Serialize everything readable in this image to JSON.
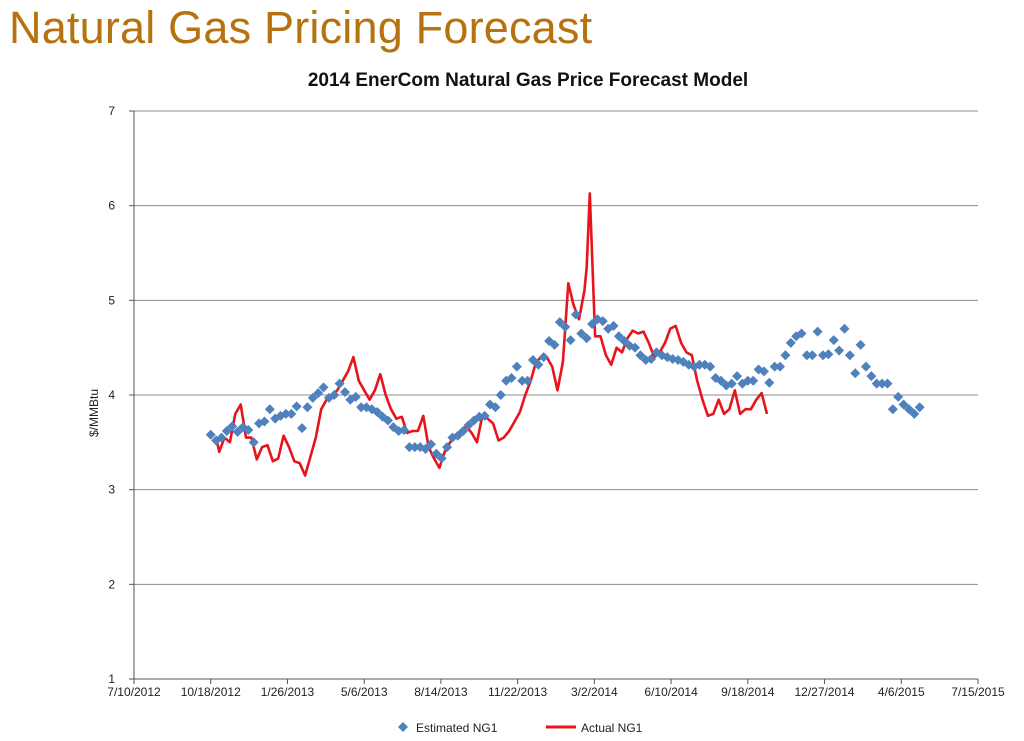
{
  "slide": {
    "title": "Natural Gas Pricing Forecast"
  },
  "colors": {
    "title": "#b5720f",
    "estimated": "#4f81bd",
    "actual": "#e8141c",
    "grid": "#8c8c8c"
  },
  "chart_data": {
    "type": "line",
    "title": "2014 EnerCom Natural Gas Price Forecast Model",
    "xlabel": "",
    "ylabel": "$/MMBtu",
    "ylim": [
      1,
      7
    ],
    "yticks": [
      1,
      2,
      3,
      4,
      5,
      6,
      7
    ],
    "xlim": [
      "2012-07-10",
      "2015-07-15"
    ],
    "xticks": [
      "7/10/2012",
      "10/18/2012",
      "1/26/2013",
      "5/6/2013",
      "8/14/2013",
      "11/22/2013",
      "3/2/2014",
      "6/10/2014",
      "9/18/2014",
      "12/27/2014",
      "4/6/2015",
      "7/15/2015"
    ],
    "grid": "horizontal",
    "legend_position": "bottom",
    "series": [
      {
        "name": "Estimated NG1",
        "style": "diamond-markers",
        "points": [
          [
            "2012-10-18",
            3.58
          ],
          [
            "2012-10-25",
            3.52
          ],
          [
            "2012-11-01",
            3.55
          ],
          [
            "2012-11-08",
            3.62
          ],
          [
            "2012-11-15",
            3.67
          ],
          [
            "2012-11-22",
            3.61
          ],
          [
            "2012-11-29",
            3.66
          ],
          [
            "2012-12-06",
            3.63
          ],
          [
            "2012-12-13",
            3.5
          ],
          [
            "2012-12-20",
            3.7
          ],
          [
            "2012-12-27",
            3.72
          ],
          [
            "2013-01-03",
            3.85
          ],
          [
            "2013-01-10",
            3.75
          ],
          [
            "2013-01-17",
            3.78
          ],
          [
            "2013-01-24",
            3.8
          ],
          [
            "2013-01-31",
            3.8
          ],
          [
            "2013-02-07",
            3.88
          ],
          [
            "2013-02-14",
            3.65
          ],
          [
            "2013-02-21",
            3.87
          ],
          [
            "2013-02-28",
            3.97
          ],
          [
            "2013-03-07",
            4.02
          ],
          [
            "2013-03-14",
            4.08
          ],
          [
            "2013-03-21",
            3.97
          ],
          [
            "2013-03-28",
            4.0
          ],
          [
            "2013-04-04",
            4.12
          ],
          [
            "2013-04-11",
            4.03
          ],
          [
            "2013-04-18",
            3.95
          ],
          [
            "2013-04-25",
            3.98
          ],
          [
            "2013-05-02",
            3.87
          ],
          [
            "2013-05-09",
            3.87
          ],
          [
            "2013-05-16",
            3.85
          ],
          [
            "2013-05-23",
            3.82
          ],
          [
            "2013-05-30",
            3.77
          ],
          [
            "2013-06-06",
            3.73
          ],
          [
            "2013-06-13",
            3.66
          ],
          [
            "2013-06-20",
            3.62
          ],
          [
            "2013-06-27",
            3.63
          ],
          [
            "2013-07-04",
            3.45
          ],
          [
            "2013-07-11",
            3.45
          ],
          [
            "2013-07-18",
            3.45
          ],
          [
            "2013-07-25",
            3.43
          ],
          [
            "2013-08-01",
            3.48
          ],
          [
            "2013-08-08",
            3.38
          ],
          [
            "2013-08-15",
            3.33
          ],
          [
            "2013-08-22",
            3.45
          ],
          [
            "2013-08-29",
            3.55
          ],
          [
            "2013-09-05",
            3.57
          ],
          [
            "2013-09-12",
            3.62
          ],
          [
            "2013-09-19",
            3.68
          ],
          [
            "2013-09-26",
            3.73
          ],
          [
            "2013-10-03",
            3.77
          ],
          [
            "2013-10-10",
            3.78
          ],
          [
            "2013-10-17",
            3.9
          ],
          [
            "2013-10-24",
            3.87
          ],
          [
            "2013-10-31",
            4.0
          ],
          [
            "2013-11-07",
            4.15
          ],
          [
            "2013-11-14",
            4.18
          ],
          [
            "2013-11-21",
            4.3
          ],
          [
            "2013-11-28",
            4.15
          ],
          [
            "2013-12-05",
            4.15
          ],
          [
            "2013-12-12",
            4.37
          ],
          [
            "2013-12-19",
            4.32
          ],
          [
            "2013-12-26",
            4.4
          ],
          [
            "2014-01-02",
            4.57
          ],
          [
            "2014-01-09",
            4.53
          ],
          [
            "2014-01-16",
            4.77
          ],
          [
            "2014-01-23",
            4.72
          ],
          [
            "2014-01-30",
            4.58
          ],
          [
            "2014-02-06",
            4.85
          ],
          [
            "2014-02-13",
            4.65
          ],
          [
            "2014-02-20",
            4.6
          ],
          [
            "2014-02-27",
            4.75
          ],
          [
            "2014-03-06",
            4.8
          ],
          [
            "2014-03-13",
            4.78
          ],
          [
            "2014-03-20",
            4.7
          ],
          [
            "2014-03-27",
            4.73
          ],
          [
            "2014-04-03",
            4.62
          ],
          [
            "2014-04-10",
            4.57
          ],
          [
            "2014-04-17",
            4.52
          ],
          [
            "2014-04-24",
            4.5
          ],
          [
            "2014-05-01",
            4.42
          ],
          [
            "2014-05-08",
            4.37
          ],
          [
            "2014-05-15",
            4.38
          ],
          [
            "2014-05-22",
            4.45
          ],
          [
            "2014-05-29",
            4.42
          ],
          [
            "2014-06-05",
            4.4
          ],
          [
            "2014-06-12",
            4.38
          ],
          [
            "2014-06-19",
            4.37
          ],
          [
            "2014-06-26",
            4.35
          ],
          [
            "2014-07-03",
            4.32
          ],
          [
            "2014-07-10",
            4.3
          ],
          [
            "2014-07-17",
            4.32
          ],
          [
            "2014-07-24",
            4.32
          ],
          [
            "2014-07-31",
            4.3
          ],
          [
            "2014-08-07",
            4.18
          ],
          [
            "2014-08-14",
            4.15
          ],
          [
            "2014-08-21",
            4.1
          ],
          [
            "2014-08-28",
            4.12
          ],
          [
            "2014-09-04",
            4.2
          ],
          [
            "2014-09-11",
            4.12
          ],
          [
            "2014-09-18",
            4.15
          ],
          [
            "2014-09-25",
            4.15
          ],
          [
            "2014-10-02",
            4.27
          ],
          [
            "2014-10-09",
            4.25
          ],
          [
            "2014-10-16",
            4.13
          ],
          [
            "2014-10-23",
            4.3
          ],
          [
            "2014-10-30",
            4.3
          ],
          [
            "2014-11-06",
            4.42
          ],
          [
            "2014-11-13",
            4.55
          ],
          [
            "2014-11-20",
            4.62
          ],
          [
            "2014-11-27",
            4.65
          ],
          [
            "2014-12-04",
            4.42
          ],
          [
            "2014-12-11",
            4.42
          ],
          [
            "2014-12-18",
            4.67
          ],
          [
            "2014-12-25",
            4.42
          ],
          [
            "2015-01-01",
            4.43
          ],
          [
            "2015-01-08",
            4.58
          ],
          [
            "2015-01-15",
            4.47
          ],
          [
            "2015-01-22",
            4.7
          ],
          [
            "2015-01-29",
            4.42
          ],
          [
            "2015-02-05",
            4.23
          ],
          [
            "2015-02-12",
            4.53
          ],
          [
            "2015-02-19",
            4.3
          ],
          [
            "2015-02-26",
            4.2
          ],
          [
            "2015-03-05",
            4.12
          ],
          [
            "2015-03-12",
            4.12
          ],
          [
            "2015-03-19",
            4.12
          ],
          [
            "2015-03-26",
            3.85
          ],
          [
            "2015-04-02",
            3.98
          ],
          [
            "2015-04-09",
            3.9
          ],
          [
            "2015-04-16",
            3.85
          ],
          [
            "2015-04-23",
            3.8
          ],
          [
            "2015-04-30",
            3.87
          ]
        ]
      },
      {
        "name": "Actual NG1",
        "style": "line",
        "points": [
          [
            "2012-10-25",
            3.55
          ],
          [
            "2012-10-29",
            3.4
          ],
          [
            "2012-11-05",
            3.55
          ],
          [
            "2012-11-12",
            3.5
          ],
          [
            "2012-11-19",
            3.8
          ],
          [
            "2012-11-26",
            3.9
          ],
          [
            "2012-12-03",
            3.55
          ],
          [
            "2012-12-10",
            3.55
          ],
          [
            "2012-12-17",
            3.32
          ],
          [
            "2012-12-24",
            3.45
          ],
          [
            "2012-12-31",
            3.47
          ],
          [
            "2013-01-07",
            3.3
          ],
          [
            "2013-01-14",
            3.33
          ],
          [
            "2013-01-21",
            3.57
          ],
          [
            "2013-01-28",
            3.45
          ],
          [
            "2013-02-04",
            3.3
          ],
          [
            "2013-02-11",
            3.28
          ],
          [
            "2013-02-18",
            3.15
          ],
          [
            "2013-02-25",
            3.35
          ],
          [
            "2013-03-04",
            3.55
          ],
          [
            "2013-03-11",
            3.85
          ],
          [
            "2013-03-18",
            3.95
          ],
          [
            "2013-03-25",
            4.0
          ],
          [
            "2013-04-01",
            4.05
          ],
          [
            "2013-04-08",
            4.15
          ],
          [
            "2013-04-15",
            4.25
          ],
          [
            "2013-04-22",
            4.4
          ],
          [
            "2013-04-29",
            4.15
          ],
          [
            "2013-05-06",
            4.05
          ],
          [
            "2013-05-13",
            3.95
          ],
          [
            "2013-05-20",
            4.05
          ],
          [
            "2013-05-27",
            4.22
          ],
          [
            "2013-06-03",
            4.0
          ],
          [
            "2013-06-10",
            3.85
          ],
          [
            "2013-06-17",
            3.75
          ],
          [
            "2013-06-24",
            3.77
          ],
          [
            "2013-07-01",
            3.6
          ],
          [
            "2013-07-08",
            3.62
          ],
          [
            "2013-07-15",
            3.62
          ],
          [
            "2013-07-22",
            3.78
          ],
          [
            "2013-07-29",
            3.45
          ],
          [
            "2013-08-05",
            3.33
          ],
          [
            "2013-08-12",
            3.23
          ],
          [
            "2013-08-19",
            3.4
          ],
          [
            "2013-08-26",
            3.5
          ],
          [
            "2013-09-02",
            3.57
          ],
          [
            "2013-09-09",
            3.6
          ],
          [
            "2013-09-16",
            3.67
          ],
          [
            "2013-09-23",
            3.6
          ],
          [
            "2013-09-30",
            3.5
          ],
          [
            "2013-10-07",
            3.78
          ],
          [
            "2013-10-14",
            3.75
          ],
          [
            "2013-10-21",
            3.7
          ],
          [
            "2013-10-28",
            3.52
          ],
          [
            "2013-11-04",
            3.55
          ],
          [
            "2013-11-11",
            3.62
          ],
          [
            "2013-11-18",
            3.72
          ],
          [
            "2013-11-25",
            3.82
          ],
          [
            "2013-12-02",
            4.0
          ],
          [
            "2013-12-09",
            4.15
          ],
          [
            "2013-12-16",
            4.35
          ],
          [
            "2013-12-23",
            4.4
          ],
          [
            "2013-12-30",
            4.4
          ],
          [
            "2014-01-06",
            4.3
          ],
          [
            "2014-01-13",
            4.05
          ],
          [
            "2014-01-20",
            4.35
          ],
          [
            "2014-01-27",
            5.18
          ],
          [
            "2014-02-03",
            4.95
          ],
          [
            "2014-02-10",
            4.8
          ],
          [
            "2014-02-17",
            5.1
          ],
          [
            "2014-02-20",
            5.35
          ],
          [
            "2014-02-24",
            6.13
          ],
          [
            "2014-03-03",
            4.62
          ],
          [
            "2014-03-10",
            4.62
          ],
          [
            "2014-03-17",
            4.42
          ],
          [
            "2014-03-24",
            4.32
          ],
          [
            "2014-03-31",
            4.5
          ],
          [
            "2014-04-07",
            4.45
          ],
          [
            "2014-04-14",
            4.6
          ],
          [
            "2014-04-21",
            4.68
          ],
          [
            "2014-04-28",
            4.65
          ],
          [
            "2014-05-05",
            4.67
          ],
          [
            "2014-05-12",
            4.55
          ],
          [
            "2014-05-19",
            4.4
          ],
          [
            "2014-05-26",
            4.45
          ],
          [
            "2014-06-02",
            4.55
          ],
          [
            "2014-06-09",
            4.7
          ],
          [
            "2014-06-16",
            4.73
          ],
          [
            "2014-06-23",
            4.55
          ],
          [
            "2014-06-30",
            4.45
          ],
          [
            "2014-07-07",
            4.42
          ],
          [
            "2014-07-14",
            4.15
          ],
          [
            "2014-07-21",
            3.95
          ],
          [
            "2014-07-28",
            3.78
          ],
          [
            "2014-08-04",
            3.8
          ],
          [
            "2014-08-11",
            3.95
          ],
          [
            "2014-08-18",
            3.8
          ],
          [
            "2014-08-25",
            3.85
          ],
          [
            "2014-09-01",
            4.05
          ],
          [
            "2014-09-08",
            3.8
          ],
          [
            "2014-09-15",
            3.85
          ],
          [
            "2014-09-22",
            3.85
          ],
          [
            "2014-09-29",
            3.95
          ],
          [
            "2014-10-06",
            4.02
          ],
          [
            "2014-10-13",
            3.8
          ]
        ]
      }
    ]
  }
}
